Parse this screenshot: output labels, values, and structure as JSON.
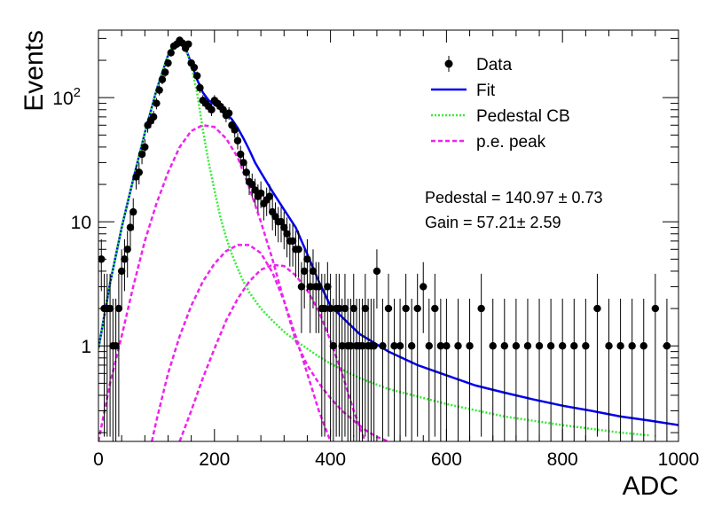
{
  "chart_data": {
    "type": "scatter",
    "xlabel": "ADC",
    "ylabel": "Events",
    "xlim": [
      0,
      1000
    ],
    "ylim": [
      0.17,
      350
    ],
    "y_scale": "log",
    "x_ticks": [
      {
        "value": 0,
        "label": "0"
      },
      {
        "value": 200,
        "label": "200"
      },
      {
        "value": 400,
        "label": "400"
      },
      {
        "value": 600,
        "label": "600"
      },
      {
        "value": 800,
        "label": "800"
      },
      {
        "value": 1000,
        "label": "1000"
      }
    ],
    "y_ticks": [
      {
        "value": 1,
        "base": "1",
        "exp": ""
      },
      {
        "value": 10,
        "base": "10",
        "exp": ""
      },
      {
        "value": 100,
        "base": "10",
        "exp": "2"
      }
    ],
    "grid": false,
    "legend_position": "top-right",
    "legend": [
      {
        "label": "Data",
        "style": "marker",
        "color": "#000000"
      },
      {
        "label": "Fit",
        "style": "solid",
        "color": "#0000ee"
      },
      {
        "label": "Pedestal CB",
        "style": "dotted",
        "color": "#33ee33"
      },
      {
        "label": "p.e. peak",
        "style": "dashed",
        "color": "#ee22ee"
      }
    ],
    "annotations": [
      "Pedestal = 140.97 ± 0.73",
      "Gain = 57.21± 2.59"
    ],
    "series": [
      {
        "name": "Data",
        "kind": "points",
        "color": "#000000",
        "x": [
          5,
          10,
          15,
          20,
          25,
          30,
          35,
          40,
          45,
          50,
          55,
          60,
          65,
          70,
          75,
          80,
          85,
          90,
          95,
          100,
          105,
          110,
          115,
          120,
          125,
          130,
          135,
          140,
          145,
          150,
          155,
          160,
          165,
          170,
          175,
          180,
          185,
          190,
          195,
          200,
          205,
          210,
          215,
          220,
          225,
          230,
          235,
          240,
          245,
          250,
          255,
          260,
          265,
          270,
          275,
          280,
          285,
          290,
          295,
          300,
          305,
          310,
          315,
          320,
          325,
          330,
          335,
          340,
          345,
          350,
          355,
          360,
          365,
          370,
          375,
          380,
          385,
          390,
          395,
          400,
          405,
          410,
          415,
          420,
          425,
          430,
          435,
          440,
          445,
          450,
          455,
          460,
          465,
          470,
          475,
          480,
          490,
          500,
          510,
          520,
          530,
          540,
          550,
          560,
          570,
          580,
          590,
          600,
          620,
          640,
          660,
          680,
          700,
          720,
          740,
          760,
          780,
          800,
          820,
          840,
          860,
          880,
          900,
          920,
          940,
          960,
          980
        ],
        "y": [
          5,
          2,
          2,
          2,
          1,
          1,
          2,
          4,
          5,
          6,
          9,
          12,
          23,
          25,
          35,
          40,
          60,
          65,
          70,
          90,
          115,
          140,
          160,
          190,
          230,
          260,
          270,
          290,
          275,
          250,
          270,
          190,
          175,
          150,
          120,
          95,
          90,
          85,
          80,
          95,
          90,
          85,
          80,
          72,
          75,
          60,
          55,
          45,
          35,
          30,
          25,
          21,
          20,
          18,
          16,
          17,
          14,
          15,
          16,
          12,
          11,
          10,
          10,
          9,
          8,
          7,
          7,
          6,
          6,
          3,
          4,
          5,
          3,
          4,
          3,
          3,
          2,
          2,
          3,
          2,
          1,
          2,
          2,
          1,
          2,
          1,
          1,
          2,
          1,
          1,
          1,
          2,
          1,
          1,
          1,
          4,
          1,
          2,
          1,
          1,
          2,
          1,
          2,
          3,
          1,
          2,
          1,
          1,
          1,
          1,
          2,
          1,
          1,
          1,
          1,
          1,
          1,
          1,
          1,
          1,
          2,
          1,
          1,
          1,
          1,
          2,
          1
        ]
      },
      {
        "name": "Fit",
        "kind": "line",
        "color": "#0000ee",
        "x": [
          0,
          20,
          40,
          60,
          80,
          100,
          120,
          130,
          140,
          150,
          160,
          170,
          180,
          190,
          200,
          210,
          220,
          230,
          240,
          250,
          260,
          270,
          280,
          300,
          320,
          340,
          360,
          380,
          400,
          450,
          500,
          550,
          600,
          650,
          700,
          750,
          800,
          850,
          900,
          950,
          1000
        ],
        "y": [
          0.95,
          3.2,
          9,
          22,
          52,
          115,
          220,
          270,
          280,
          250,
          190,
          140,
          110,
          95,
          88,
          82,
          75,
          67,
          57,
          47,
          38,
          30,
          25,
          17.5,
          12.5,
          9,
          5.5,
          3.3,
          2.1,
          1.25,
          0.9,
          0.7,
          0.58,
          0.48,
          0.42,
          0.37,
          0.33,
          0.3,
          0.27,
          0.25,
          0.23
        ]
      },
      {
        "name": "Pedestal CB",
        "kind": "line",
        "color": "#33ee33",
        "x": [
          0,
          20,
          40,
          60,
          80,
          100,
          120,
          130,
          140,
          150,
          160,
          170,
          180,
          190,
          200,
          210,
          220,
          230,
          240,
          250,
          260,
          280,
          300,
          320,
          340,
          360,
          380,
          400,
          450,
          500,
          600,
          700,
          800,
          900,
          950
        ],
        "y": [
          0.95,
          3.2,
          9,
          22,
          52,
          115,
          220,
          270,
          280,
          250,
          180,
          110,
          55,
          30,
          18,
          11,
          7.5,
          5.5,
          4.2,
          3.3,
          2.7,
          2,
          1.6,
          1.3,
          1.1,
          0.95,
          0.82,
          0.72,
          0.55,
          0.45,
          0.34,
          0.27,
          0.23,
          0.2,
          0.19
        ]
      },
      {
        "name": "p.e. peak 1",
        "kind": "line",
        "color": "#ee22ee",
        "x": [
          0,
          20,
          40,
          60,
          80,
          100,
          120,
          140,
          160,
          180,
          200,
          220,
          240,
          260,
          280,
          300,
          320,
          340,
          360,
          380,
          400,
          420,
          440,
          460,
          480,
          500
        ],
        "y": [
          0.17,
          0.5,
          1.2,
          3,
          7,
          14,
          25,
          40,
          54,
          60,
          58,
          47,
          33,
          19,
          10,
          5,
          2.3,
          1.1,
          0.7,
          0.5,
          0.38,
          0.3,
          0.25,
          0.21,
          0.185,
          0.17
        ]
      },
      {
        "name": "p.e. peak 2",
        "kind": "line",
        "color": "#ee22ee",
        "x": [
          92,
          100,
          120,
          140,
          160,
          180,
          200,
          220,
          240,
          260,
          280,
          300,
          320,
          340,
          360,
          380,
          400
        ],
        "y": [
          0.17,
          0.25,
          0.6,
          1.2,
          2.1,
          3.3,
          4.6,
          5.8,
          6.5,
          6.5,
          5.6,
          3.9,
          2.3,
          1.2,
          0.6,
          0.3,
          0.17
        ]
      },
      {
        "name": "p.e. peak 3",
        "kind": "line",
        "color": "#ee22ee",
        "x": [
          140,
          160,
          180,
          200,
          220,
          240,
          260,
          280,
          300,
          320,
          340,
          360,
          380,
          400,
          420,
          440,
          460
        ],
        "y": [
          0.17,
          0.3,
          0.55,
          0.95,
          1.6,
          2.4,
          3.3,
          4.1,
          4.5,
          4.4,
          3.7,
          2.8,
          1.9,
          1.1,
          0.6,
          0.3,
          0.17
        ]
      }
    ]
  }
}
